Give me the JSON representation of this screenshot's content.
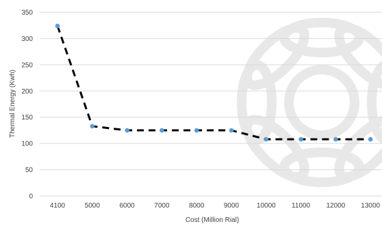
{
  "chart_data": {
    "type": "scatter",
    "title": "",
    "xlabel": "Cost (Million Rial)",
    "ylabel": "Thermal Energy (Kwh)",
    "categories": [
      "4100",
      "5000",
      "6000",
      "7000",
      "8000",
      "9000",
      "10000",
      "11000",
      "12000",
      "13000"
    ],
    "x_tick_labels": [
      "4100",
      "5000",
      "6000",
      "7000",
      "8000",
      "9000",
      "10000",
      "11000",
      "12000",
      "13000"
    ],
    "y_ticks": [
      0,
      50,
      100,
      150,
      200,
      250,
      300,
      350
    ],
    "ylim": [
      0,
      350
    ],
    "grid": true,
    "legend": "none",
    "series": [
      {
        "values": [
          324,
          133,
          125,
          125,
          125,
          125,
          108,
          108,
          108,
          108
        ],
        "marker_color": "#5B9BD5",
        "trendline_style": "dashed",
        "trendline_color": "#000000"
      }
    ],
    "gridline_color": "#D9D9D9",
    "watermark_color": "#E8E8E8"
  }
}
